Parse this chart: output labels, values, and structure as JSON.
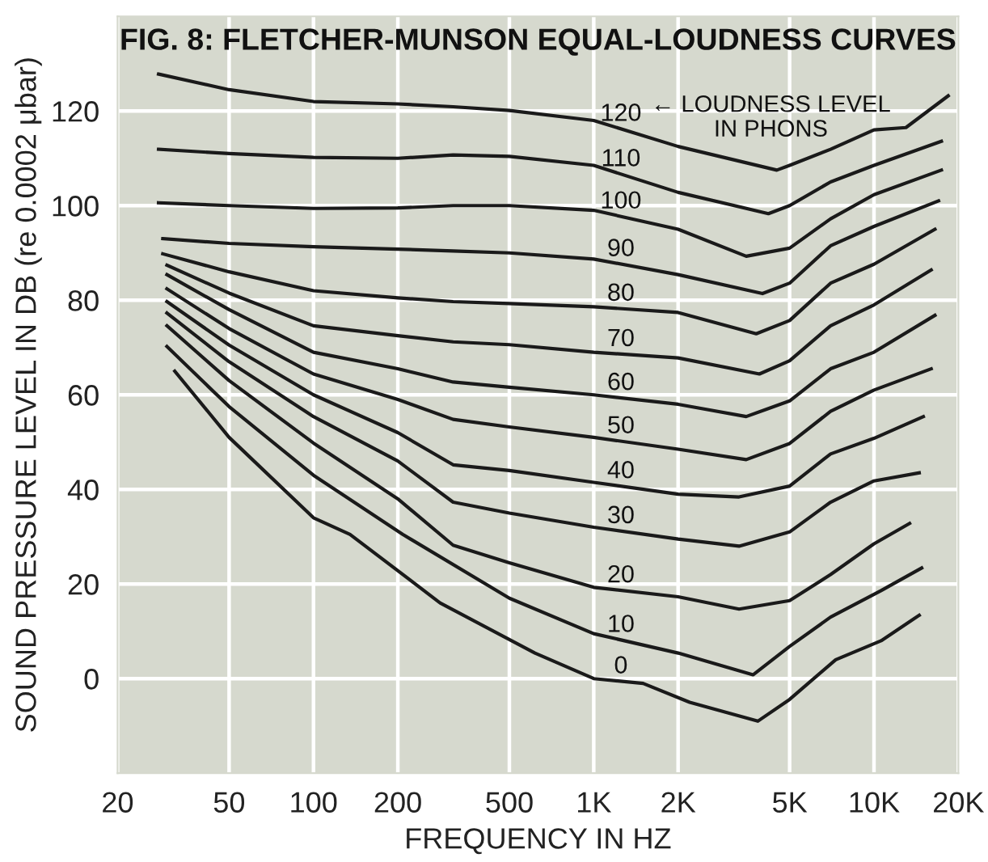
{
  "chart_data": {
    "type": "line",
    "title": "FIG. 8: FLETCHER-MUNSON EQUAL-LOUDNESS CURVES",
    "xlabel": "FREQUENCY IN HZ",
    "ylabel": "SOUND PRESSURE LEVEL IN DB (re 0.0002 μbar)",
    "log": "x",
    "xlim": [
      20,
      20000
    ],
    "ylim": [
      -20,
      140
    ],
    "xticks": [
      20,
      50,
      100,
      200,
      500,
      {
        "value": 1000,
        "label": "1K"
      },
      {
        "value": 2000,
        "label": "2K"
      },
      {
        "value": 5000,
        "label": "5K"
      },
      {
        "value": 10000,
        "label": "10K"
      },
      {
        "value": 20000,
        "label": "20K"
      }
    ],
    "yticks": [
      0,
      20,
      40,
      60,
      80,
      100,
      120
    ],
    "grid": true,
    "legend": false,
    "line_style": "solid",
    "annotations": [
      "← LOUDNESS LEVEL\nIN PHONS"
    ],
    "series": [
      {
        "name": "120",
        "color": "#1a1a1a",
        "x": [
          28,
          50,
          100,
          200,
          315,
          500,
          1000,
          2000,
          4500,
          5000,
          7000,
          10000,
          13000,
          18400
        ],
        "values": [
          127.8,
          124.5,
          122,
          121.5,
          120.9,
          120.1,
          118,
          112.5,
          107.5,
          108.5,
          111.9,
          116,
          116.5,
          123.2
        ]
      },
      {
        "name": "110",
        "color": "#1a1a1a",
        "x": [
          28,
          50,
          100,
          200,
          315,
          500,
          1000,
          2000,
          4200,
          5000,
          7000,
          10000,
          17400
        ],
        "values": [
          111.9,
          111,
          110.2,
          110,
          110.7,
          110.4,
          108.5,
          102.8,
          98.3,
          100,
          105,
          108.5,
          113.6
        ]
      },
      {
        "name": "100",
        "color": "#1a1a1a",
        "x": [
          28,
          50,
          100,
          200,
          315,
          500,
          1000,
          2000,
          3500,
          5000,
          7000,
          10000,
          17400
        ],
        "values": [
          100.6,
          100,
          99.4,
          99.5,
          100,
          100,
          99,
          95,
          89.3,
          91,
          97.2,
          102.3,
          107.5
        ]
      },
      {
        "name": "90",
        "color": "#1a1a1a",
        "x": [
          29,
          50,
          100,
          200,
          315,
          500,
          1000,
          2000,
          4000,
          5000,
          7000,
          10000,
          17000
        ],
        "values": [
          93,
          92,
          91.3,
          90.8,
          90.4,
          90,
          88.7,
          85.4,
          81.4,
          83.6,
          91.5,
          95.6,
          101
        ]
      },
      {
        "name": "80",
        "color": "#1a1a1a",
        "x": [
          29,
          50,
          100,
          200,
          315,
          500,
          1000,
          2000,
          3800,
          5000,
          7000,
          10000,
          16500
        ],
        "values": [
          89.8,
          86,
          82,
          80.5,
          79.7,
          79.3,
          78.6,
          77.4,
          72.9,
          75.7,
          83.6,
          87.6,
          95
        ]
      },
      {
        "name": "70",
        "color": "#1a1a1a",
        "x": [
          30,
          50,
          100,
          200,
          315,
          500,
          1000,
          2000,
          3900,
          5000,
          7000,
          10000,
          16000
        ],
        "values": [
          87.4,
          81.5,
          74.6,
          72.5,
          71.2,
          70.6,
          69,
          67.8,
          64.4,
          67.2,
          74.6,
          79,
          86.4
        ]
      },
      {
        "name": "60",
        "color": "#1a1a1a",
        "x": [
          30,
          50,
          100,
          200,
          315,
          500,
          1000,
          2000,
          3500,
          5000,
          7000,
          10000,
          16500
        ],
        "values": [
          85.4,
          78,
          69,
          65.5,
          62.7,
          61.6,
          60,
          58,
          55.4,
          58.7,
          65.5,
          69,
          76.8
        ]
      },
      {
        "name": "50",
        "color": "#1a1a1a",
        "x": [
          30,
          50,
          100,
          200,
          315,
          500,
          1000,
          2000,
          3500,
          5000,
          7000,
          10000,
          16000
        ],
        "values": [
          82.4,
          74,
          64.4,
          59,
          54.8,
          53.2,
          51,
          48.5,
          46.3,
          49.7,
          56.5,
          61,
          65.5
        ]
      },
      {
        "name": "40",
        "color": "#1a1a1a",
        "x": [
          30,
          50,
          100,
          200,
          315,
          500,
          1000,
          2000,
          3300,
          5000,
          7000,
          10000,
          15000
        ],
        "values": [
          79.7,
          70.5,
          60,
          52,
          45.2,
          44,
          41.5,
          39,
          38.4,
          40.7,
          47.5,
          50.8,
          55.4
        ]
      },
      {
        "name": "30",
        "color": "#1a1a1a",
        "x": [
          30,
          50,
          100,
          200,
          315,
          500,
          1000,
          2000,
          3300,
          5000,
          7000,
          10000,
          14500
        ],
        "values": [
          77.3,
          67,
          55.4,
          46,
          37.3,
          35,
          32,
          29.5,
          28,
          31,
          37.3,
          41.8,
          43.5
        ]
      },
      {
        "name": "20",
        "color": "#1a1a1a",
        "x": [
          30,
          50,
          100,
          200,
          315,
          500,
          1000,
          2000,
          3300,
          5000,
          7000,
          10000,
          13400
        ],
        "values": [
          74.6,
          63,
          49.8,
          38,
          28.2,
          24.5,
          19.3,
          17.3,
          14.7,
          16.5,
          22,
          28.5,
          32.8
        ]
      },
      {
        "name": "10",
        "color": "#1a1a1a",
        "x": [
          30,
          50,
          100,
          208,
          500,
          1000,
          2000,
          3700,
          5000,
          7000,
          10600,
          14800
        ],
        "values": [
          70.2,
          57.5,
          43,
          30.5,
          17,
          9.5,
          5.4,
          0.8,
          6.8,
          13,
          18.6,
          23.4
        ]
      },
      {
        "name": "0",
        "color": "#1a1a1a",
        "x": [
          32,
          50,
          100,
          135,
          283,
          617,
          1000,
          1500,
          2200,
          3850,
          5000,
          7300,
          10600,
          14500
        ],
        "values": [
          65,
          51,
          34,
          30.5,
          16,
          5.4,
          0,
          -1,
          -5,
          -9,
          -4.4,
          4,
          8,
          13.4
        ]
      }
    ]
  }
}
